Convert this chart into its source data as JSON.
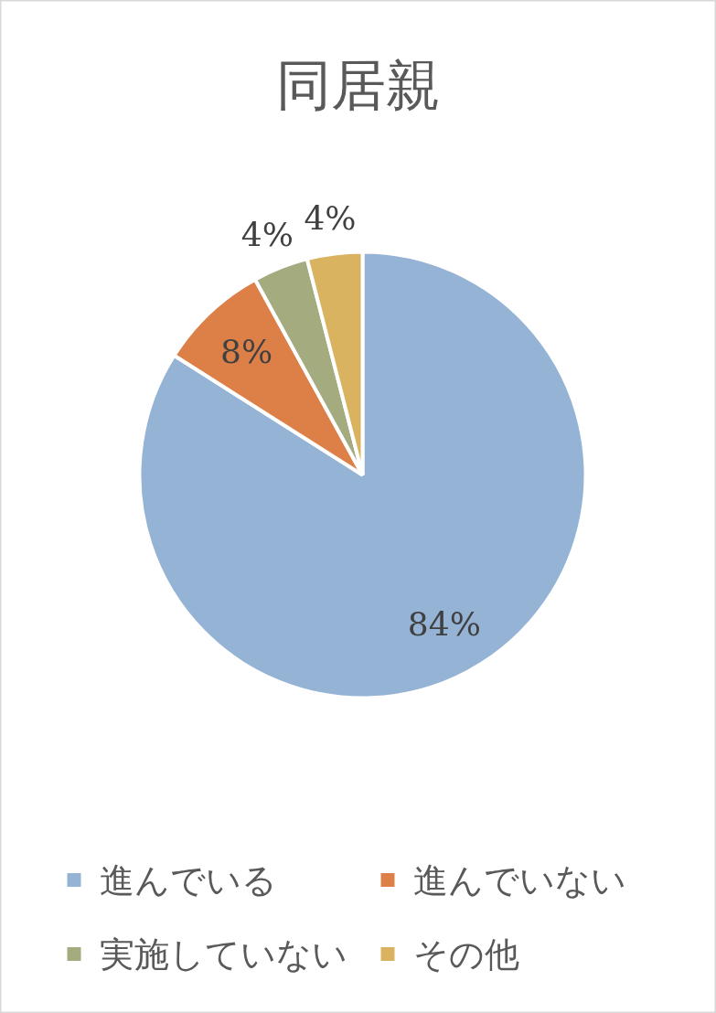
{
  "chart_data": {
    "type": "pie",
    "title": "同居親",
    "categories": [
      "進んでいる",
      "進んでいない",
      "実施していない",
      "その他"
    ],
    "values": [
      84,
      8,
      4,
      4
    ],
    "colors": [
      "#95b3d5",
      "#dd8048",
      "#a4ab7f",
      "#d9b35f"
    ],
    "value_labels": [
      "84%",
      "8%",
      "4%",
      "4%"
    ],
    "legend": "bottom"
  }
}
